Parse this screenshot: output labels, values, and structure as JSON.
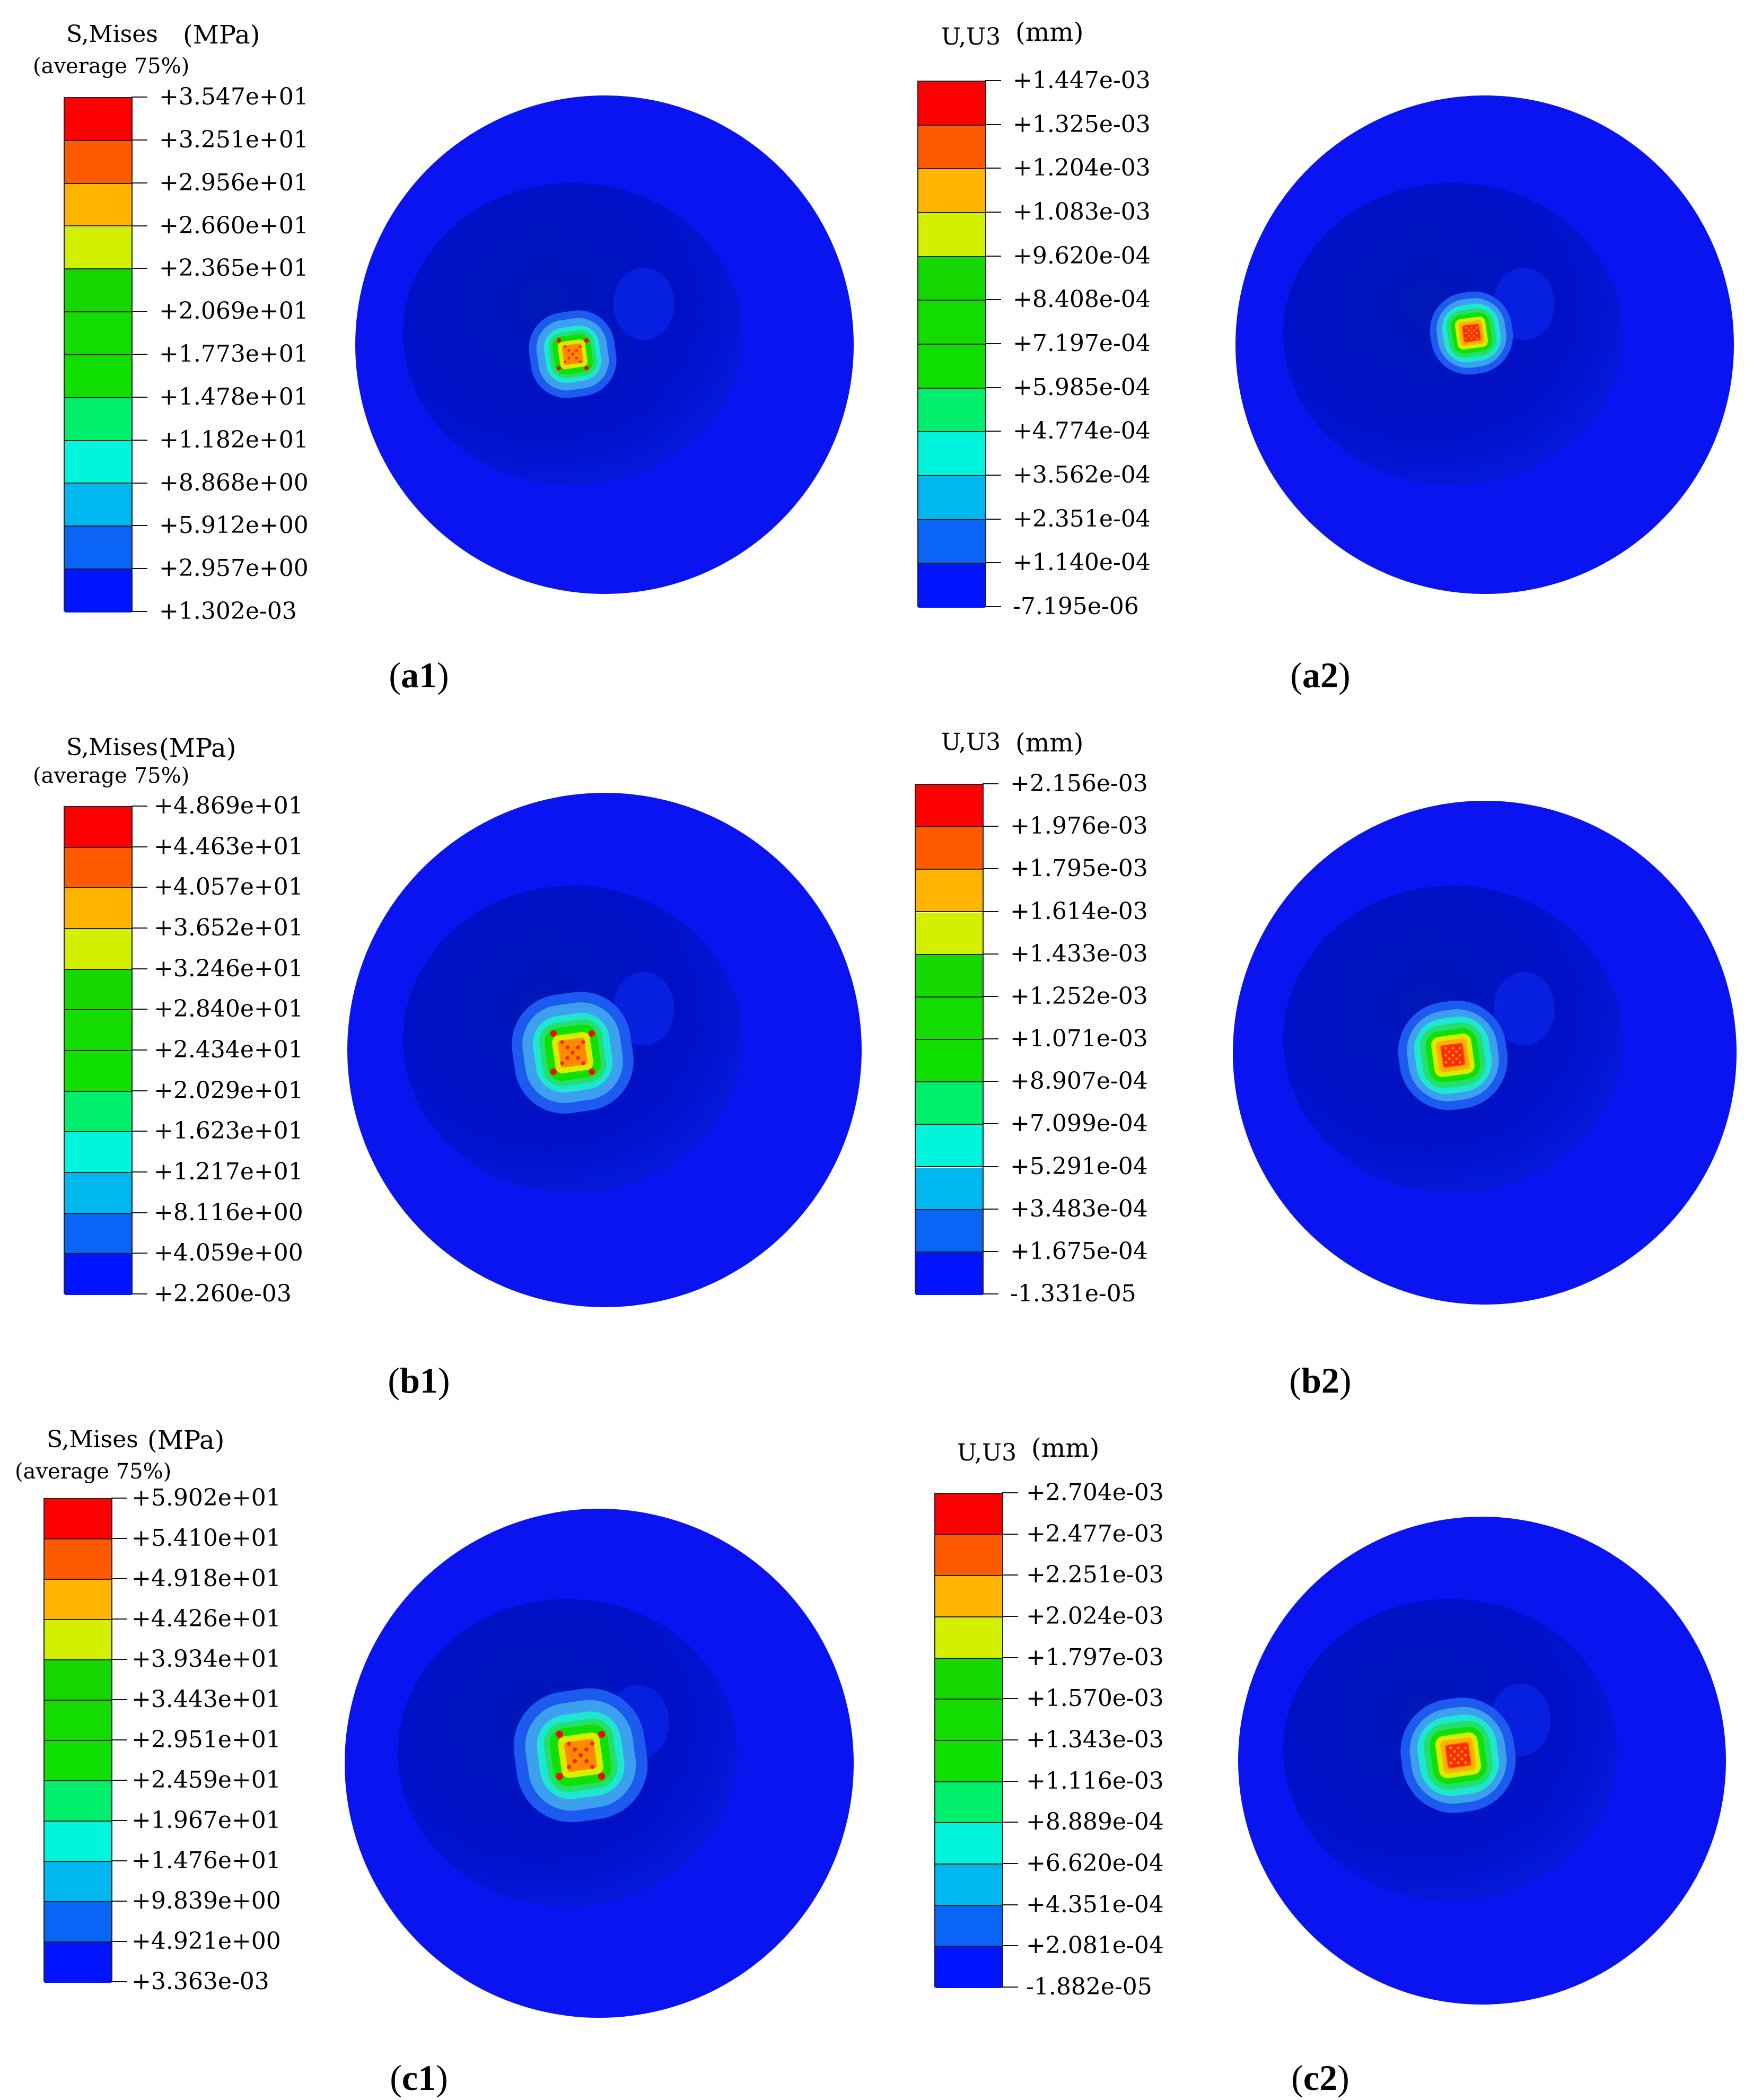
{
  "figure_type": "finite element contour plots (top view of circular model)",
  "palette": [
    "#ff0000",
    "#ff5a00",
    "#ffb400",
    "#d2f000",
    "#15d800",
    "#12dc00",
    "#10e000",
    "#00f06e",
    "#00f5dc",
    "#00b8f0",
    "#0a64f5",
    "#0014ff"
  ],
  "panels": [
    {
      "id": "a1",
      "caption_letter": "a",
      "caption_number": "1",
      "legend_title": "S,Mises",
      "legend_unit": "(MPa)",
      "legend_subtitle": "(average 75%)",
      "hotspot_shape": "stress-cross",
      "values": [
        "+3.547e+01",
        "+3.251e+01",
        "+2.956e+01",
        "+2.660e+01",
        "+2.365e+01",
        "+2.069e+01",
        "+1.773e+01",
        "+1.478e+01",
        "+1.182e+01",
        "+8.868e+00",
        "+5.912e+00",
        "+2.957e+00",
        "+1.302e-03"
      ]
    },
    {
      "id": "a2",
      "caption_letter": "a",
      "caption_number": "2",
      "legend_title": "U,U3",
      "legend_unit": "(mm)",
      "legend_subtitle": "",
      "hotspot_shape": "displacement",
      "values": [
        "+1.447e-03",
        "+1.325e-03",
        "+1.204e-03",
        "+1.083e-03",
        "+9.620e-04",
        "+8.408e-04",
        "+7.197e-04",
        "+5.985e-04",
        "+4.774e-04",
        "+3.562e-04",
        "+2.351e-04",
        "+1.140e-04",
        "-7.195e-06"
      ]
    },
    {
      "id": "b1",
      "caption_letter": "b",
      "caption_number": "1",
      "legend_title": "S,Mises",
      "legend_unit": "(MPa)",
      "legend_subtitle": "(average 75%)",
      "hotspot_shape": "stress-cross",
      "values": [
        "+4.869e+01",
        "+4.463e+01",
        "+4.057e+01",
        "+3.652e+01",
        "+3.246e+01",
        "+2.840e+01",
        "+2.434e+01",
        "+2.029e+01",
        "+1.623e+01",
        "+1.217e+01",
        "+8.116e+00",
        "+4.059e+00",
        "+2.260e-03"
      ]
    },
    {
      "id": "b2",
      "caption_letter": "b",
      "caption_number": "2",
      "legend_title": "U,U3",
      "legend_unit": "(mm)",
      "legend_subtitle": "",
      "hotspot_shape": "displacement",
      "values": [
        "+2.156e-03",
        "+1.976e-03",
        "+1.795e-03",
        "+1.614e-03",
        "+1.433e-03",
        "+1.252e-03",
        "+1.071e-03",
        "+8.907e-04",
        "+7.099e-04",
        "+5.291e-04",
        "+3.483e-04",
        "+1.675e-04",
        "-1.331e-05"
      ]
    },
    {
      "id": "c1",
      "caption_letter": "c",
      "caption_number": "1",
      "legend_title": "S,Mises",
      "legend_unit": "(MPa)",
      "legend_subtitle": "(average 75%)",
      "hotspot_shape": "stress-cross",
      "values": [
        "+5.902e+01",
        "+5.410e+01",
        "+4.918e+01",
        "+4.426e+01",
        "+3.934e+01",
        "+3.443e+01",
        "+2.951e+01",
        "+2.459e+01",
        "+1.967e+01",
        "+1.476e+01",
        "+9.839e+00",
        "+4.921e+00",
        "+3.363e-03"
      ]
    },
    {
      "id": "c2",
      "caption_letter": "c",
      "caption_number": "2",
      "legend_title": "U,U3",
      "legend_unit": "(mm)",
      "legend_subtitle": "",
      "hotspot_shape": "displacement",
      "values": [
        "+2.704e-03",
        "+2.477e-03",
        "+2.251e-03",
        "+2.024e-03",
        "+1.797e-03",
        "+1.570e-03",
        "+1.343e-03",
        "+1.116e-03",
        "+8.889e-04",
        "+6.620e-04",
        "+4.351e-04",
        "+2.081e-04",
        "-1.882e-05"
      ]
    }
  ]
}
